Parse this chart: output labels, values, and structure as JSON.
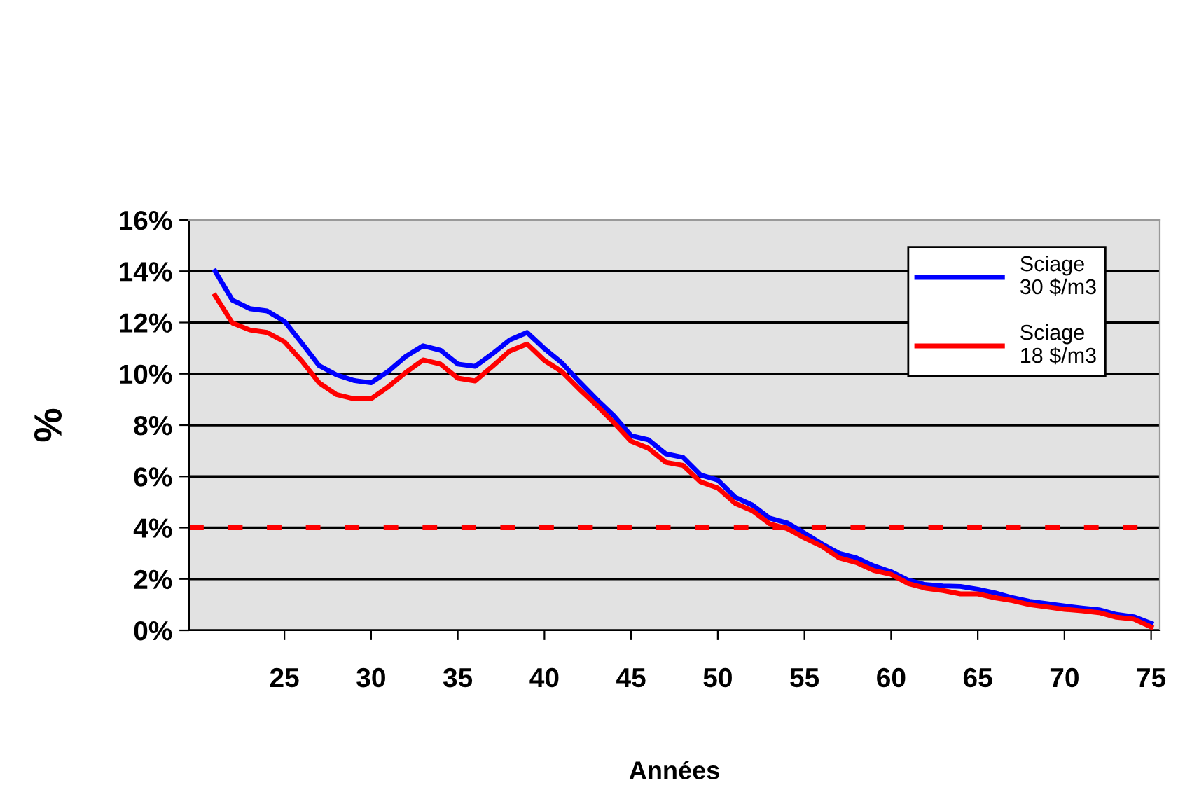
{
  "chart_data": {
    "type": "line",
    "xlabel": "Années",
    "ylabel": "%",
    "x": [
      21,
      22,
      23,
      24,
      25,
      26,
      27,
      28,
      29,
      30,
      31,
      32,
      33,
      34,
      35,
      36,
      37,
      38,
      39,
      40,
      41,
      42,
      43,
      44,
      45,
      46,
      47,
      48,
      49,
      50,
      51,
      52,
      53,
      54,
      55,
      56,
      57,
      58,
      59,
      60,
      61,
      62,
      63,
      64,
      65,
      66,
      67,
      68,
      69,
      70,
      71,
      72,
      73,
      74,
      75
    ],
    "series": [
      {
        "name": "Sciage\n30 $/m3",
        "color": "#0000ff",
        "values": [
          14.0,
          12.87,
          12.54,
          12.45,
          12.05,
          11.2,
          10.32,
          9.96,
          9.74,
          9.65,
          10.1,
          10.68,
          11.09,
          10.92,
          10.38,
          10.29,
          10.78,
          11.32,
          11.61,
          10.98,
          10.43,
          9.7,
          9.01,
          8.37,
          7.59,
          7.43,
          6.88,
          6.74,
          6.06,
          5.86,
          5.19,
          4.88,
          4.37,
          4.19,
          3.79,
          3.37,
          3.0,
          2.82,
          2.51,
          2.28,
          1.95,
          1.78,
          1.73,
          1.71,
          1.6,
          1.46,
          1.27,
          1.13,
          1.04,
          0.95,
          0.87,
          0.8,
          0.62,
          0.53,
          0.27
        ]
      },
      {
        "name": "Sciage\n18 $/m3",
        "color": "#ff0000",
        "values": [
          13.05,
          11.98,
          11.71,
          11.61,
          11.25,
          10.5,
          9.65,
          9.19,
          9.03,
          9.03,
          9.5,
          10.05,
          10.54,
          10.38,
          9.83,
          9.72,
          10.29,
          10.89,
          11.16,
          10.52,
          10.09,
          9.41,
          8.78,
          8.1,
          7.37,
          7.1,
          6.55,
          6.43,
          5.79,
          5.55,
          4.95,
          4.66,
          4.15,
          3.97,
          3.6,
          3.28,
          2.82,
          2.64,
          2.33,
          2.18,
          1.82,
          1.64,
          1.55,
          1.42,
          1.42,
          1.27,
          1.16,
          1.0,
          0.91,
          0.82,
          0.76,
          0.69,
          0.51,
          0.44,
          0.13
        ]
      }
    ],
    "ref_lines": [
      {
        "axis": "y",
        "value": 4,
        "color": "#ff0000",
        "line_style": "dashed"
      }
    ],
    "xlim": [
      19.5,
      75.5
    ],
    "xticks": [
      25,
      30,
      35,
      40,
      45,
      50,
      55,
      60,
      65,
      70,
      75
    ],
    "ylim": [
      0,
      16
    ],
    "yticks": [
      {
        "value": 0,
        "label": "0%"
      },
      {
        "value": 2,
        "label": "2%"
      },
      {
        "value": 4,
        "label": "4%"
      },
      {
        "value": 6,
        "label": "6%"
      },
      {
        "value": 8,
        "label": "8%"
      },
      {
        "value": 10,
        "label": "10%"
      },
      {
        "value": 12,
        "label": "12%"
      },
      {
        "value": 14,
        "label": "14%"
      },
      {
        "value": 16,
        "label": "16%"
      }
    ],
    "grid": "y",
    "legend": "top right",
    "marker": "none",
    "line_style": "solid"
  }
}
